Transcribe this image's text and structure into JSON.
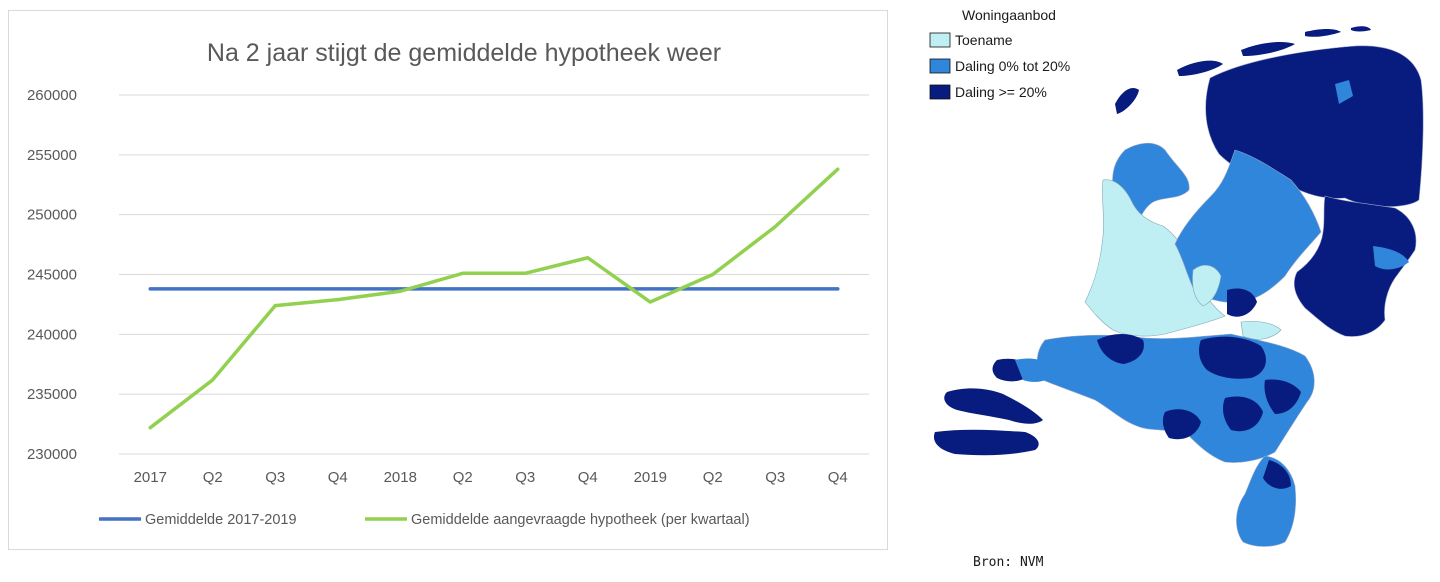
{
  "chart_data": {
    "type": "line",
    "title": "Na 2 jaar stijgt de gemiddelde hypotheek weer",
    "categories": [
      "2017",
      "Q2",
      "Q3",
      "Q4",
      "2018",
      "Q2",
      "Q3",
      "Q4",
      "2019",
      "Q2",
      "Q3",
      "Q4"
    ],
    "ylim": [
      230000,
      260000
    ],
    "yticks": [
      230000,
      235000,
      240000,
      245000,
      250000,
      255000,
      260000
    ],
    "grid": true,
    "legend_position": "bottom",
    "series": [
      {
        "name": "Gemiddelde 2017-2019",
        "color": "#4472C4",
        "values": [
          243800,
          243800,
          243800,
          243800,
          243800,
          243800,
          243800,
          243800,
          243800,
          243800,
          243800,
          243800
        ]
      },
      {
        "name": "Gemiddelde aangevraagde hypotheek (per kwartaal)",
        "color": "#92D050",
        "values": [
          232200,
          236200,
          242400,
          242900,
          243600,
          245100,
          245100,
          246400,
          242700,
          245000,
          249000,
          253800
        ]
      }
    ]
  },
  "map": {
    "legend_title": "Woningaanbod",
    "legend": [
      {
        "label": "Toename",
        "color": "#BFEEF3"
      },
      {
        "label": "Daling 0% tot 20%",
        "color": "#2F86DA"
      },
      {
        "label": "Daling >= 20%",
        "color": "#081B7E"
      }
    ],
    "source": "Bron: NVM"
  }
}
